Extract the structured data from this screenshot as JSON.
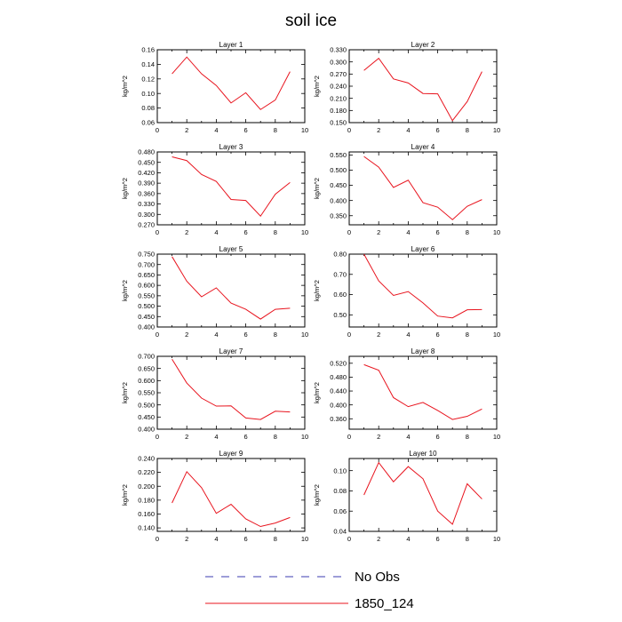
{
  "title": "soil ice",
  "legend": [
    {
      "label": "No Obs",
      "color": "#3b3bb0",
      "dash": "dashed"
    },
    {
      "label": "1850_124",
      "color": "#e8141e",
      "dash": "solid"
    }
  ],
  "chart_data": [
    {
      "type": "line",
      "title": "Layer 1",
      "ylabel": "kg/m^2",
      "x": [
        1,
        2,
        3,
        4,
        5,
        6,
        7,
        8,
        9
      ],
      "xlim": [
        0,
        10
      ],
      "xticks": [
        0,
        2,
        4,
        6,
        8,
        10
      ],
      "ylim": [
        0.06,
        0.16
      ],
      "yticks": [
        "0.06",
        "0.08",
        "0.10",
        "0.12",
        "0.14",
        "0.16"
      ],
      "series": [
        {
          "name": "1850_124",
          "values": [
            0.127,
            0.15,
            0.127,
            0.111,
            0.087,
            0.101,
            0.078,
            0.091,
            0.13
          ]
        }
      ]
    },
    {
      "type": "line",
      "title": "Layer 2",
      "ylabel": "kg/m^2",
      "x": [
        1,
        2,
        3,
        4,
        5,
        6,
        7,
        8,
        9
      ],
      "xlim": [
        0,
        10
      ],
      "xticks": [
        0,
        2,
        4,
        6,
        8,
        10
      ],
      "ylim": [
        0.15,
        0.33
      ],
      "yticks": [
        "0.150",
        "0.180",
        "0.210",
        "0.240",
        "0.270",
        "0.300",
        "0.330"
      ],
      "series": [
        {
          "name": "1850_124",
          "values": [
            0.279,
            0.309,
            0.258,
            0.248,
            0.222,
            0.221,
            0.155,
            0.202,
            0.276
          ]
        }
      ]
    },
    {
      "type": "line",
      "title": "Layer 3",
      "ylabel": "kg/m^2",
      "x": [
        1,
        2,
        3,
        4,
        5,
        6,
        7,
        8,
        9
      ],
      "xlim": [
        0,
        10
      ],
      "xticks": [
        0,
        2,
        4,
        6,
        8,
        10
      ],
      "ylim": [
        0.27,
        0.48
      ],
      "yticks": [
        "0.270",
        "0.300",
        "0.330",
        "0.360",
        "0.390",
        "0.420",
        "0.450",
        "0.480"
      ],
      "series": [
        {
          "name": "1850_124",
          "values": [
            0.466,
            0.455,
            0.415,
            0.395,
            0.343,
            0.34,
            0.295,
            0.358,
            0.392
          ]
        }
      ]
    },
    {
      "type": "line",
      "title": "Layer 4",
      "ylabel": "kg/m^2",
      "x": [
        1,
        2,
        3,
        4,
        5,
        6,
        7,
        8,
        9
      ],
      "xlim": [
        0,
        10
      ],
      "xticks": [
        0,
        2,
        4,
        6,
        8,
        10
      ],
      "ylim": [
        0.32,
        0.56
      ],
      "yticks": [
        "0.350",
        "0.400",
        "0.450",
        "0.500",
        "0.550"
      ],
      "series": [
        {
          "name": "1850_124",
          "values": [
            0.545,
            0.51,
            0.443,
            0.467,
            0.393,
            0.378,
            0.337,
            0.381,
            0.403
          ]
        }
      ]
    },
    {
      "type": "line",
      "title": "Layer 5",
      "ylabel": "kg/m^2",
      "x": [
        1,
        2,
        3,
        4,
        5,
        6,
        7,
        8,
        9
      ],
      "xlim": [
        0,
        10
      ],
      "xticks": [
        0,
        2,
        4,
        6,
        8,
        10
      ],
      "ylim": [
        0.4,
        0.75
      ],
      "yticks": [
        "0.400",
        "0.450",
        "0.500",
        "0.550",
        "0.600",
        "0.650",
        "0.700",
        "0.750"
      ],
      "series": [
        {
          "name": "1850_124",
          "values": [
            0.738,
            0.62,
            0.545,
            0.588,
            0.515,
            0.485,
            0.438,
            0.485,
            0.49
          ]
        }
      ]
    },
    {
      "type": "line",
      "title": "Layer 6",
      "ylabel": "kg/m^2",
      "x": [
        1,
        2,
        3,
        4,
        5,
        6,
        7,
        8,
        9
      ],
      "xlim": [
        0,
        10
      ],
      "xticks": [
        0,
        2,
        4,
        6,
        8,
        10
      ],
      "ylim": [
        0.44,
        0.8
      ],
      "yticks": [
        "0.50",
        "0.60",
        "0.70",
        "0.80"
      ],
      "series": [
        {
          "name": "1850_124",
          "values": [
            0.8,
            0.668,
            0.596,
            0.615,
            0.559,
            0.494,
            0.485,
            0.525,
            0.526
          ]
        }
      ]
    },
    {
      "type": "line",
      "title": "Layer 7",
      "ylabel": "kg/m^2",
      "x": [
        1,
        2,
        3,
        4,
        5,
        6,
        7,
        8,
        9
      ],
      "xlim": [
        0,
        10
      ],
      "xticks": [
        0,
        2,
        4,
        6,
        8,
        10
      ],
      "ylim": [
        0.4,
        0.7
      ],
      "yticks": [
        "0.400",
        "0.450",
        "0.500",
        "0.550",
        "0.600",
        "0.650",
        "0.700"
      ],
      "series": [
        {
          "name": "1850_124",
          "values": [
            0.688,
            0.59,
            0.528,
            0.495,
            0.496,
            0.446,
            0.44,
            0.474,
            0.471
          ]
        }
      ]
    },
    {
      "type": "line",
      "title": "Layer 8",
      "ylabel": "kg/m^2",
      "x": [
        1,
        2,
        3,
        4,
        5,
        6,
        7,
        8,
        9
      ],
      "xlim": [
        0,
        10
      ],
      "xticks": [
        0,
        2,
        4,
        6,
        8,
        10
      ],
      "ylim": [
        0.33,
        0.54
      ],
      "yticks": [
        "0.360",
        "0.400",
        "0.440",
        "0.480",
        "0.520"
      ],
      "series": [
        {
          "name": "1850_124",
          "values": [
            0.516,
            0.5,
            0.421,
            0.395,
            0.407,
            0.384,
            0.358,
            0.367,
            0.388
          ]
        }
      ]
    },
    {
      "type": "line",
      "title": "Layer 9",
      "ylabel": "kg/m^2",
      "x": [
        1,
        2,
        3,
        4,
        5,
        6,
        7,
        8,
        9
      ],
      "xlim": [
        0,
        10
      ],
      "xticks": [
        0,
        2,
        4,
        6,
        8,
        10
      ],
      "ylim": [
        0.135,
        0.24
      ],
      "yticks": [
        "0.140",
        "0.160",
        "0.180",
        "0.200",
        "0.220",
        "0.240"
      ],
      "series": [
        {
          "name": "1850_124",
          "values": [
            0.176,
            0.221,
            0.198,
            0.161,
            0.174,
            0.153,
            0.142,
            0.147,
            0.155
          ]
        }
      ]
    },
    {
      "type": "line",
      "title": "Layer 10",
      "ylabel": "kg/m^2",
      "x": [
        1,
        2,
        3,
        4,
        5,
        6,
        7,
        8,
        9
      ],
      "xlim": [
        0,
        10
      ],
      "xticks": [
        0,
        2,
        4,
        6,
        8,
        10
      ],
      "ylim": [
        0.04,
        0.112
      ],
      "yticks": [
        "0.04",
        "0.06",
        "0.08",
        "0.10"
      ],
      "series": [
        {
          "name": "1850_124",
          "values": [
            0.076,
            0.108,
            0.089,
            0.104,
            0.092,
            0.06,
            0.047,
            0.087,
            0.072
          ]
        }
      ]
    }
  ]
}
